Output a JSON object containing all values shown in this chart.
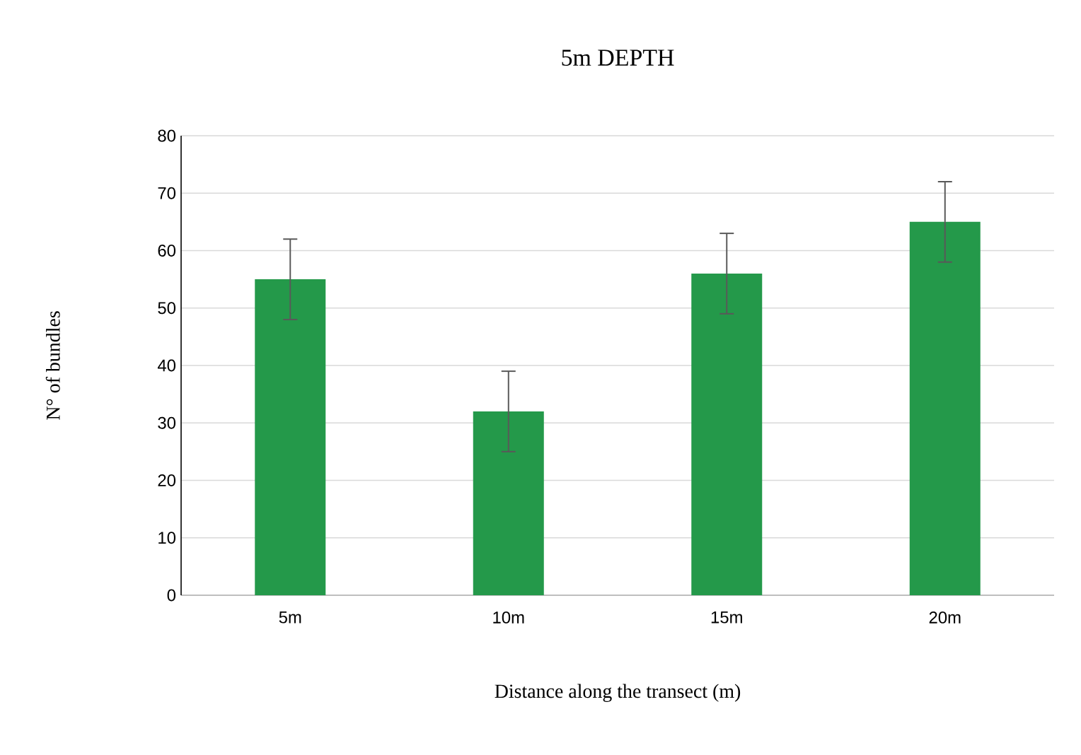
{
  "chart_data": {
    "type": "bar",
    "title": "5m DEPTH",
    "xlabel": "Distance along the transect (m)",
    "ylabel": "N° of bundles",
    "categories": [
      "5m",
      "10m",
      "15m",
      "20m"
    ],
    "values": [
      55,
      32,
      56,
      65
    ],
    "errors": [
      7,
      7,
      7,
      7
    ],
    "color": "#24994a",
    "ylim": [
      0,
      80
    ],
    "yticks": [
      0,
      10,
      20,
      30,
      40,
      50,
      60,
      70,
      80
    ],
    "grid": "y"
  }
}
